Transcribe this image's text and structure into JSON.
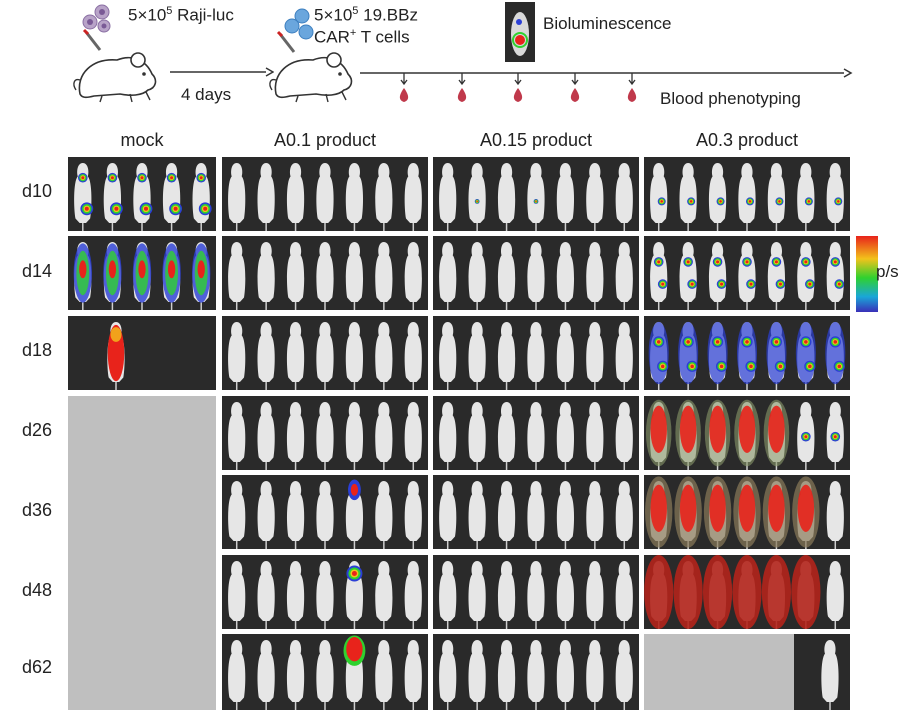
{
  "protocol": {
    "raji": {
      "base": "5×10",
      "exp": "5",
      "rest": " Raji-luc"
    },
    "interval": "4 days",
    "car": {
      "base": "5×10",
      "exp": "5",
      "rest": " 19.BBz",
      "line2a": "CAR",
      "line2sup": "+",
      "line2b": " T cells"
    },
    "bioluminescence": "Bioluminescence",
    "blood": "Blood phenotyping"
  },
  "columns": [
    "mock",
    "A0.1 product",
    "A0.15 product",
    "A0.3 product"
  ],
  "rows": [
    "d10",
    "d14",
    "d18",
    "d26",
    "d36",
    "d48",
    "d62"
  ],
  "colorbar_label": "p/s",
  "colors": {
    "panel_bg": "#2a2a2a",
    "empty": "#bfbfbf",
    "mouse": "#e6e6e6",
    "signal_low": "#2b3fd6",
    "signal_mid": "#2fd12f",
    "signal_high": "#e8231b"
  }
}
